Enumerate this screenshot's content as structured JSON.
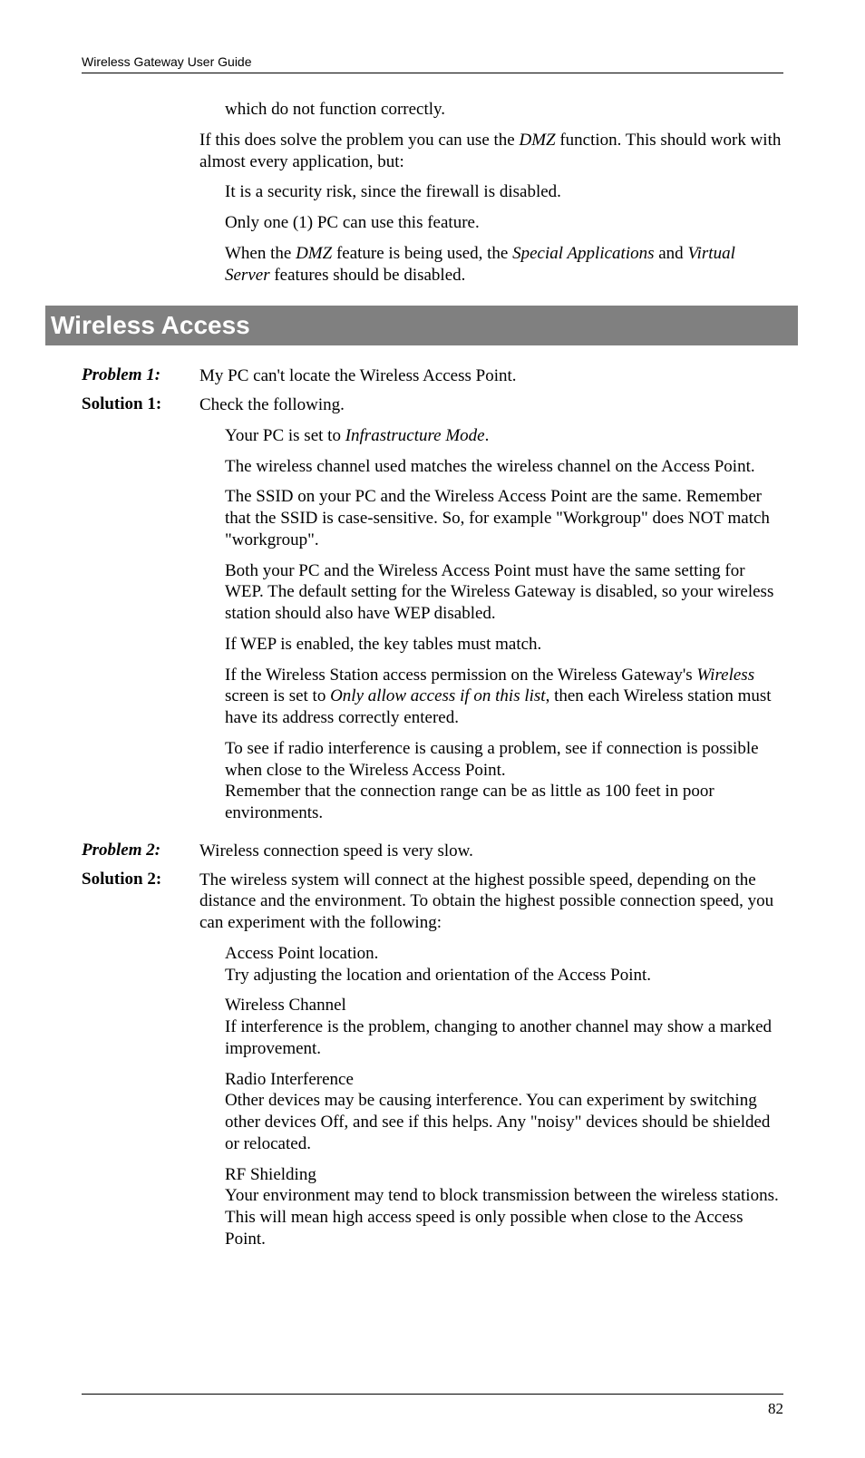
{
  "header": {
    "title": "Wireless Gateway User Guide"
  },
  "intro": {
    "line1": "which do not function correctly.",
    "line2a": "If this does solve the problem you can use the ",
    "line2_dmz": "DMZ",
    "line2b": " function. This should work with almost every application, but:",
    "bullet1": "It is a security risk, since the firewall is disabled.",
    "bullet2": "Only one (1) PC can use this feature.",
    "bullet3a": "When the ",
    "bullet3_dmz": "DMZ",
    "bullet3b": " feature is being used, the ",
    "bullet3_sa": "Special Applications",
    "bullet3c": " and ",
    "bullet3_vs": "Virtual Server",
    "bullet3d": " features should be disabled."
  },
  "section": {
    "title": "Wireless Access"
  },
  "p1": {
    "label": "Problem 1:",
    "text": "My PC can't locate the Wireless Access Point."
  },
  "s1": {
    "label": "Solution 1:",
    "intro": "Check the following.",
    "b1a": "Your PC is set to ",
    "b1_im": "Infrastructure Mode",
    "b1b": ".",
    "b2": "The wireless channel used matches the wireless channel on the Access Point.",
    "b3": "The SSID on your PC and the Wireless Access Point are the same. Remember that the SSID is case-sensitive. So, for example \"Workgroup\" does NOT match \"workgroup\".",
    "b4": "Both your PC and the Wireless Access Point must have the same setting for WEP. The default setting for the Wireless Gateway is disabled, so your wireless station should also have WEP disabled.",
    "b5": "If WEP is enabled, the key tables must match.",
    "b6a": "If the Wireless Station access permission on the Wireless Gateway's ",
    "b6_w": "Wireless",
    "b6b": " screen is set to ",
    "b6_oa": "Only allow access if on this list",
    "b6c": ", then each Wireless station must have its address correctly entered.",
    "b7": "To see if radio interference is causing a problem, see if connection is possible when close to the Wireless Access Point.",
    "b7b": "Remember that the connection range can be as little as 100 feet in poor environments."
  },
  "p2": {
    "label": "Problem 2:",
    "text": "Wireless connection speed is very slow."
  },
  "s2": {
    "label": "Solution 2:",
    "intro": "The wireless system will connect at the highest possible speed, depending on the distance and the environment. To obtain the highest possible connection speed, you can experiment with the following:",
    "b1": "Access Point location.",
    "b1b": "Try adjusting the location and orientation of the Access Point.",
    "b2": "Wireless Channel",
    "b2b": "If interference is the problem, changing to another channel may show a marked improvement.",
    "b3": "Radio Interference",
    "b3b": "Other devices may be causing interference. You can experiment by switching other devices Off, and see if this helps. Any \"noisy\" devices should be shielded or relocated.",
    "b4": "RF Shielding",
    "b4b": "Your environment may tend to block transmission between the wireless stations. This will mean high access speed is only possible when close to the Access Point."
  },
  "footer": {
    "page": "82"
  }
}
